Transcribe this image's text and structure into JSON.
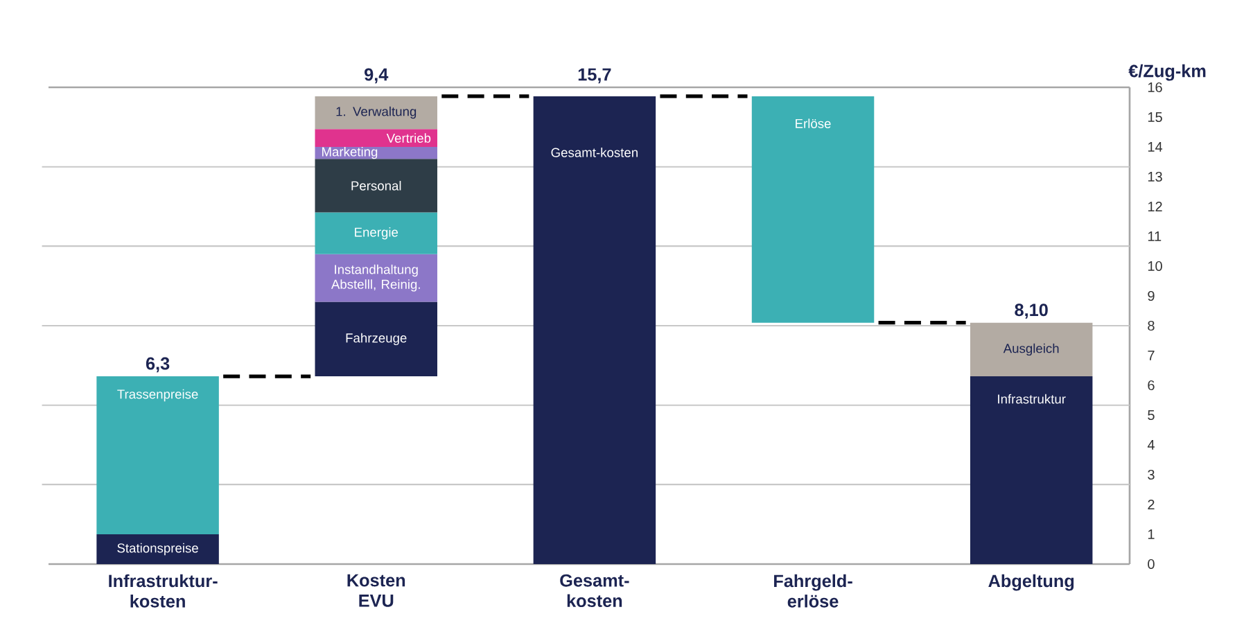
{
  "chart_data": {
    "type": "bar",
    "categories": [
      "Infrastruktur-kosten",
      "Kosten EVU",
      "Gesamt-kosten",
      "Fahrgeld-erlöse",
      "Abgeltung"
    ],
    "series": [
      {
        "name": "Stationspreise",
        "color": "#1c2452",
        "values": [
          1.0,
          null,
          null,
          null,
          null
        ],
        "base": [
          0,
          null,
          null,
          null,
          null
        ]
      },
      {
        "name": "Trassenpreise",
        "color": "#3cb0b4",
        "values": [
          5.3,
          null,
          null,
          null,
          null
        ],
        "base": [
          1.0,
          null,
          null,
          null,
          null
        ]
      },
      {
        "name": "Fahrzeuge",
        "color": "#1c2452",
        "values": [
          null,
          2.5,
          null,
          null,
          null
        ],
        "base": [
          null,
          6.3,
          null,
          null,
          null
        ]
      },
      {
        "name": "Instandhaltung Abstelll, Reinig.",
        "color": "#8c77c8",
        "values": [
          null,
          1.6,
          null,
          null,
          null
        ],
        "base": [
          null,
          8.8,
          null,
          null,
          null
        ]
      },
      {
        "name": "Energie",
        "color": "#3cb0b4",
        "values": [
          null,
          1.4,
          null,
          null,
          null
        ],
        "base": [
          null,
          10.4,
          null,
          null,
          null
        ]
      },
      {
        "name": "Personal",
        "color": "#2e3d47",
        "values": [
          null,
          1.8,
          null,
          null,
          null
        ],
        "base": [
          null,
          11.8,
          null,
          null,
          null
        ]
      },
      {
        "name": "Marketing",
        "color": "#8c77c8",
        "values": [
          null,
          0.4,
          null,
          null,
          null
        ],
        "base": [
          null,
          13.6,
          null,
          null,
          null
        ]
      },
      {
        "name": "Vertrieb",
        "color": "#e0338e",
        "values": [
          null,
          0.6,
          null,
          null,
          null
        ],
        "base": [
          null,
          14.0,
          null,
          null,
          null
        ]
      },
      {
        "name": "1. Verwaltung",
        "color": "#b3aba3",
        "values": [
          null,
          1.1,
          null,
          null,
          null
        ],
        "base": [
          null,
          14.6,
          null,
          null,
          null
        ]
      },
      {
        "name": "Gesamt-kosten",
        "color": "#1c2452",
        "values": [
          null,
          null,
          15.7,
          null,
          null
        ],
        "base": [
          null,
          null,
          0,
          null,
          null
        ]
      },
      {
        "name": "Erlöse",
        "color": "#3cb0b4",
        "values": [
          null,
          null,
          null,
          7.6,
          null
        ],
        "base": [
          null,
          null,
          null,
          8.1,
          null
        ]
      },
      {
        "name": "Infrastruktur",
        "color": "#1c2452",
        "values": [
          null,
          null,
          null,
          null,
          6.3
        ],
        "base": [
          null,
          null,
          null,
          null,
          0
        ]
      },
      {
        "name": "Ausgleich",
        "color": "#b3aba3",
        "values": [
          null,
          null,
          null,
          null,
          1.8
        ],
        "base": [
          null,
          null,
          null,
          null,
          6.3
        ]
      }
    ],
    "totals": [
      "6,3",
      "9,4",
      "15,7",
      null,
      "8,10"
    ],
    "ylim": [
      0,
      16
    ],
    "yticks": [
      0,
      1,
      2,
      3,
      4,
      5,
      6,
      7,
      8,
      9,
      10,
      11,
      12,
      13,
      14,
      15,
      16
    ],
    "ylabel": "€/Zug-km",
    "ref_lines": [
      {
        "axis": "y",
        "value": 2.67,
        "color": "#c8c8c8"
      },
      {
        "axis": "y",
        "value": 5.33,
        "color": "#c8c8c8"
      },
      {
        "axis": "y",
        "value": 8,
        "color": "#c8c8c8"
      },
      {
        "axis": "y",
        "value": 10.67,
        "color": "#c8c8c8"
      },
      {
        "axis": "y",
        "value": 13.33,
        "color": "#c8c8c8"
      }
    ]
  }
}
